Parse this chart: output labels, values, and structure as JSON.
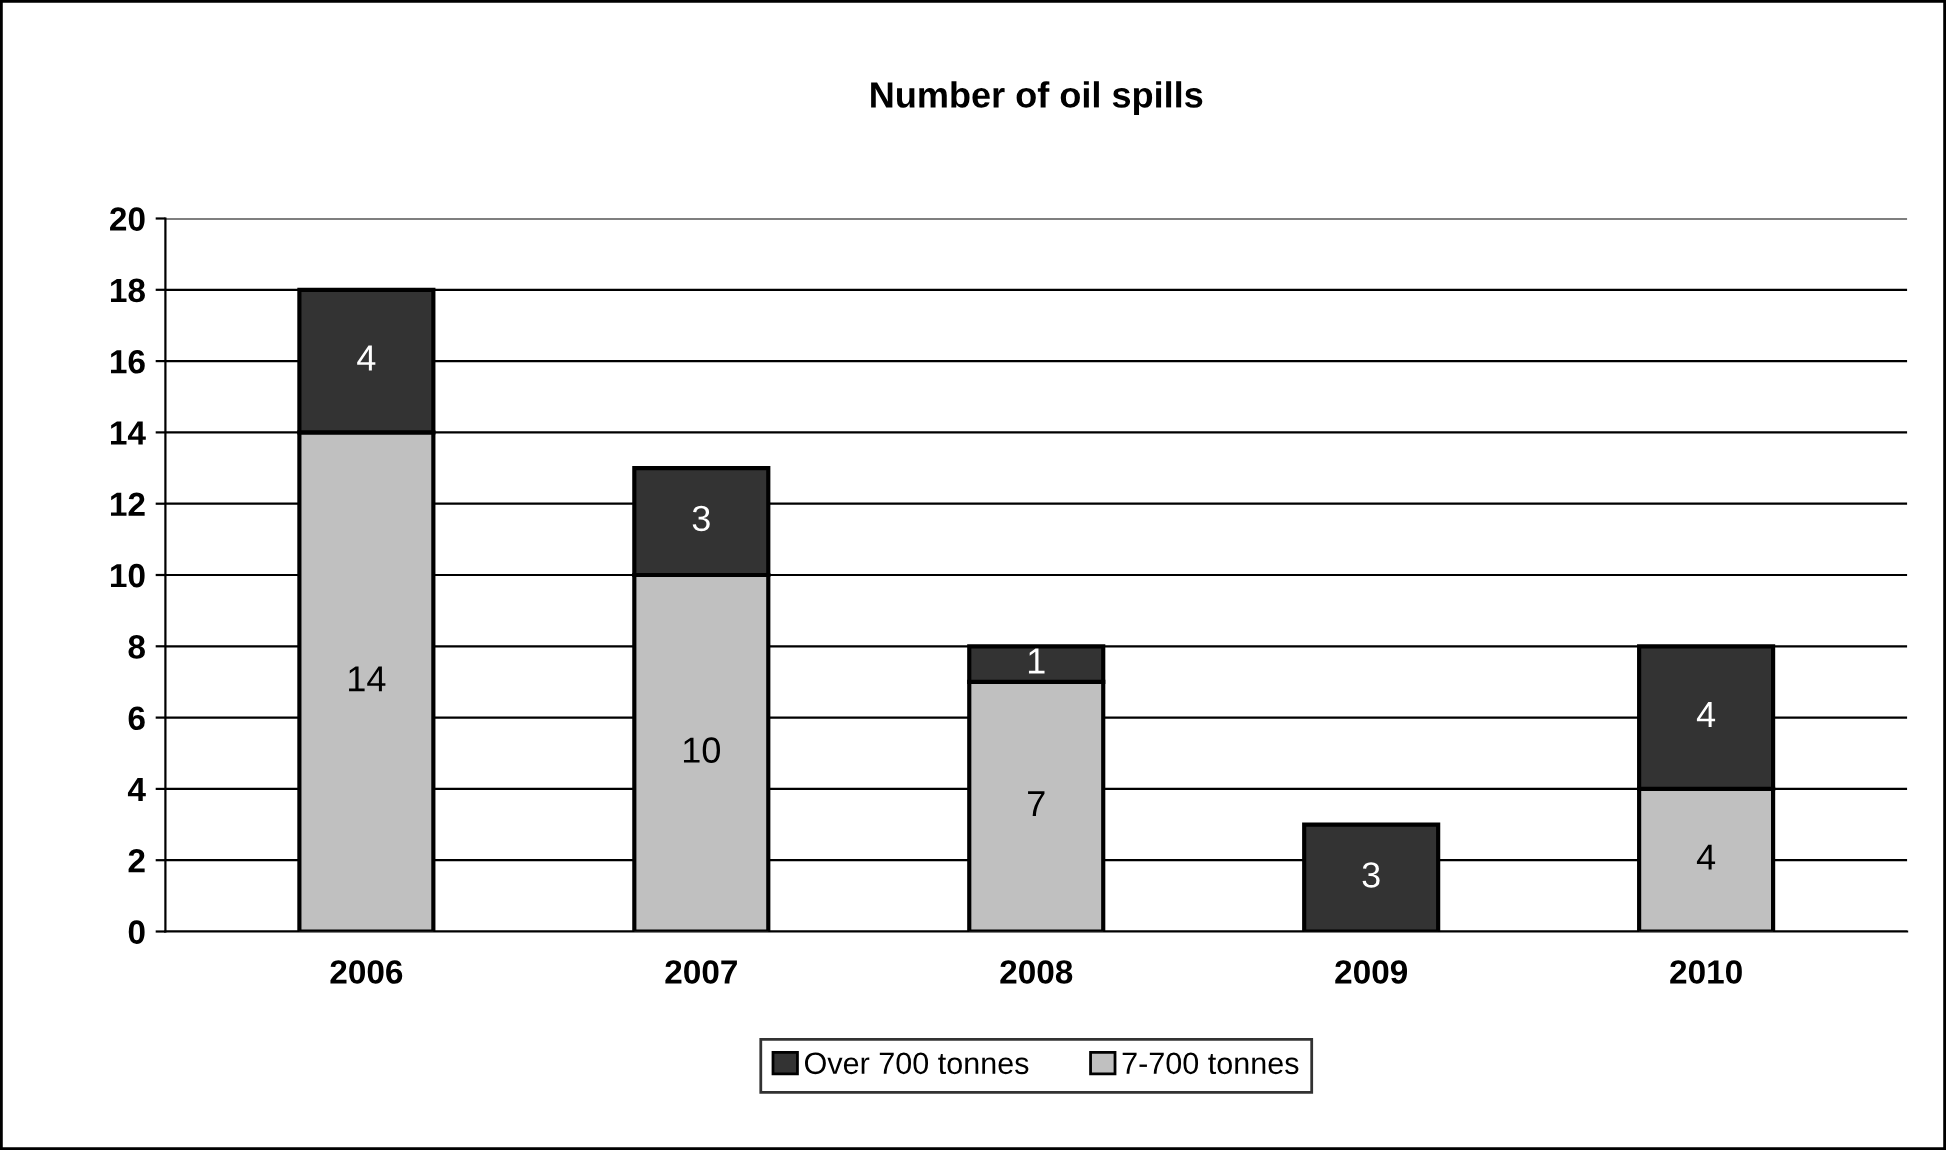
{
  "chart_data": {
    "type": "bar",
    "title": "Number of oil spills",
    "stacked": true,
    "categories": [
      "2006",
      "2007",
      "2008",
      "2009",
      "2010"
    ],
    "series": [
      {
        "name": "7-700 tonnes",
        "color": "#c0c0c0",
        "values": [
          14,
          10,
          7,
          0,
          4
        ],
        "value_labels": [
          "14",
          "10",
          "7",
          null,
          "4"
        ]
      },
      {
        "name": "Over 700 tonnes",
        "color": "#333333",
        "values": [
          4,
          3,
          1,
          3,
          4
        ],
        "value_labels": [
          "4",
          "3",
          "1",
          "3",
          "4"
        ]
      }
    ],
    "ylim": [
      0,
      20
    ],
    "yticks": [
      0,
      2,
      4,
      6,
      8,
      10,
      12,
      14,
      16,
      18,
      20
    ],
    "grid": "y",
    "legend": "bottom"
  }
}
